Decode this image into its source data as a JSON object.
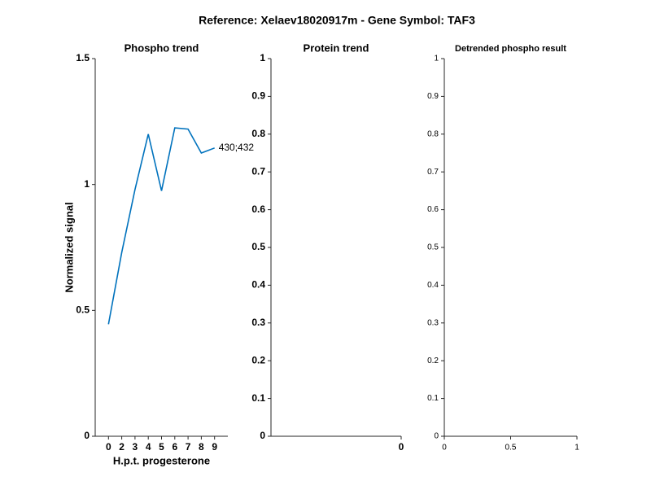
{
  "title": "Reference:  Xelaev18020917m - Gene Symbol:  TAF3",
  "chart_data": [
    {
      "type": "line",
      "title": "Phospho trend",
      "xlabel": "H.p.t. progesterone",
      "ylabel": "Normalized signal",
      "categories": [
        "0",
        "2",
        "3",
        "4",
        "5",
        "6",
        "7",
        "8",
        "9"
      ],
      "series": [
        {
          "name": "430;432",
          "color": "#0072bd",
          "values": [
            0.445,
            0.73,
            0.98,
            1.2,
            0.975,
            1.225,
            1.22,
            1.125,
            1.145
          ]
        }
      ],
      "ylim": [
        0,
        1.5
      ],
      "yticks": [
        0,
        0.5,
        1,
        1.5
      ]
    },
    {
      "type": "line",
      "title": "Protein trend",
      "xlim": [
        -1,
        0
      ],
      "xticks": [
        0
      ],
      "ylim": [
        0,
        1
      ],
      "yticks": [
        0,
        0.1,
        0.2,
        0.3,
        0.4,
        0.5,
        0.6,
        0.7,
        0.8,
        0.9,
        1
      ]
    },
    {
      "type": "line",
      "title": "Detrended phospho result",
      "xlim": [
        0,
        1
      ],
      "xticks": [
        0,
        0.5,
        1
      ],
      "ylim": [
        0,
        1
      ],
      "yticks": [
        0,
        0.1,
        0.2,
        0.3,
        0.4,
        0.5,
        0.6,
        0.7,
        0.8,
        0.9,
        1
      ]
    }
  ]
}
